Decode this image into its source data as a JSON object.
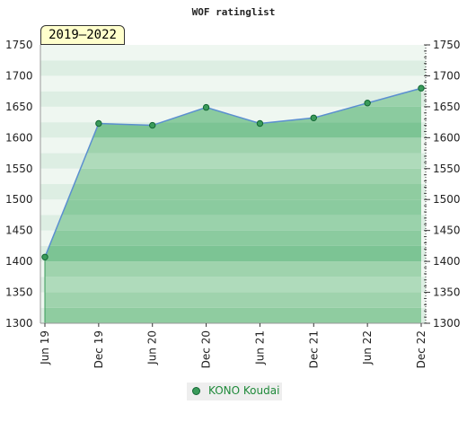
{
  "chart_data": {
    "type": "area",
    "title": "WOF ratinglist",
    "date_range_label": "2019–2022",
    "categories": [
      "Jun 19",
      "Dec 19",
      "Jun 20",
      "Dec 20",
      "Jun 21",
      "Dec 21",
      "Jun 22",
      "Dec 22"
    ],
    "series": [
      {
        "name": "KONO Koudai",
        "values": [
          1407,
          1623,
          1620,
          1649,
          1623,
          1632,
          1656,
          1680
        ]
      }
    ],
    "ylim": [
      1300,
      1750
    ],
    "yticks": [
      1300,
      1350,
      1400,
      1450,
      1500,
      1550,
      1600,
      1650,
      1700,
      1750
    ],
    "y_axis_both_sides": true,
    "legend_position": "bottom-center",
    "colors": {
      "line": "#5b8fd0",
      "fill": "#55b06a",
      "marker": "#3a9b5a",
      "legend_text": "#1f8a3a"
    }
  }
}
